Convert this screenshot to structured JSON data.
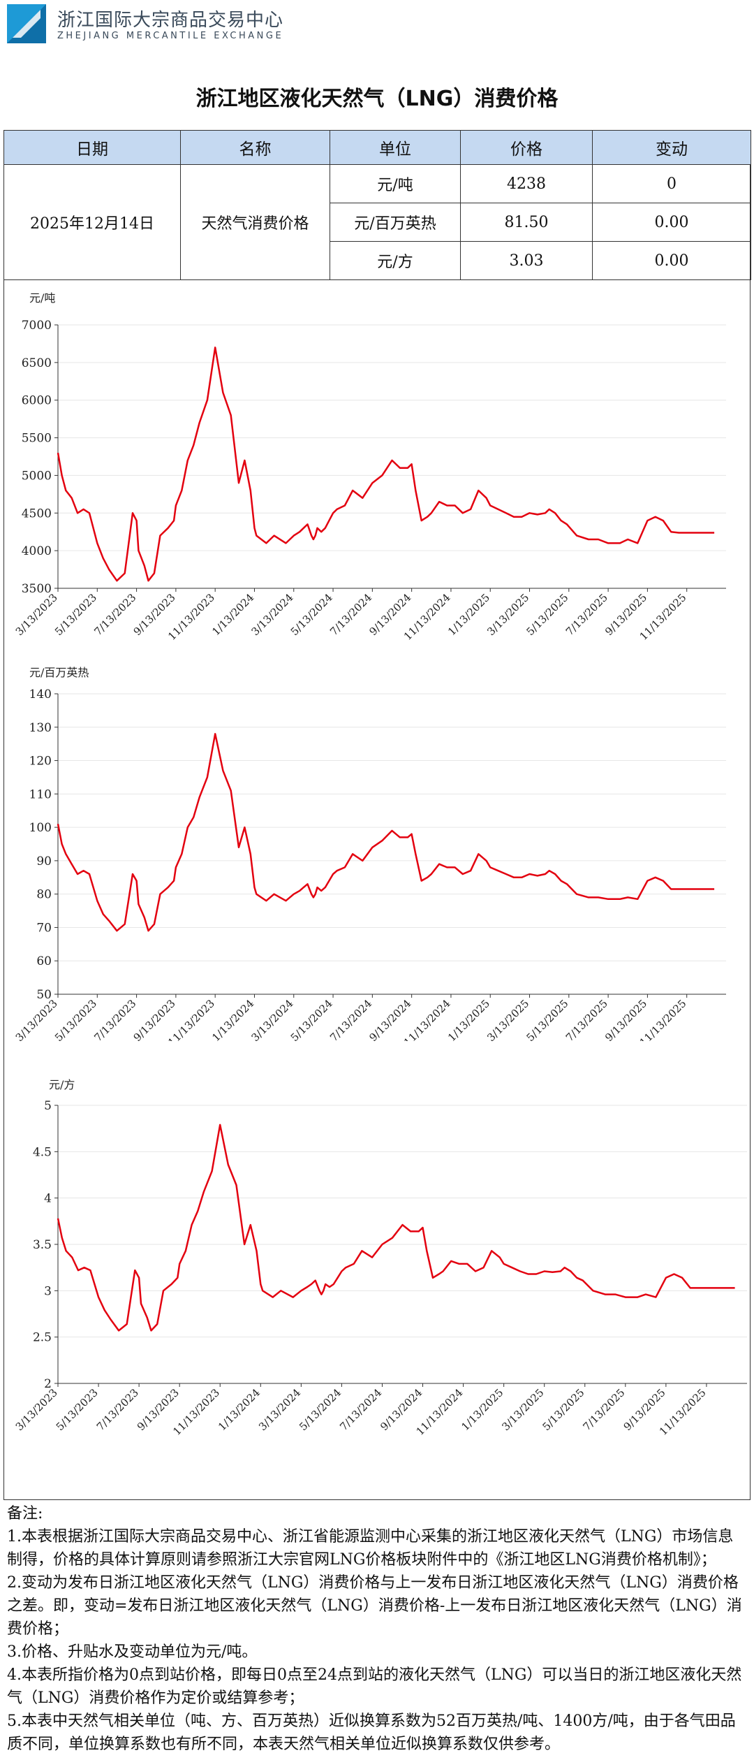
{
  "header": {
    "org_name_cn": "浙江国际大宗商品交易中心",
    "org_name_en": "ZHEJIANG MERCANTILE EXCHANGE",
    "logo_color": "#1e9ad6"
  },
  "title": "浙江地区液化天然气（LNG）消费价格",
  "table": {
    "headers": [
      "日期",
      "名称",
      "单位",
      "价格",
      "变动"
    ],
    "date": "2025年12月14日",
    "name": "天然气消费价格",
    "rows": [
      {
        "unit": "元/吨",
        "price": "4238",
        "change": "0"
      },
      {
        "unit": "元/百万英热",
        "price": "81.50",
        "change": "0.00"
      },
      {
        "unit": "元/方",
        "price": "3.03",
        "change": "0.00"
      }
    ]
  },
  "chart_data": [
    {
      "type": "line",
      "ylabel": "元/吨",
      "ylim": [
        3500,
        7000
      ],
      "yticks": [
        3500,
        4000,
        4500,
        5000,
        5500,
        6000,
        6500,
        7000
      ],
      "xticks": [
        "3/13/2023",
        "5/13/2023",
        "7/13/2023",
        "9/13/2023",
        "11/13/2023",
        "1/13/2024",
        "3/13/2024",
        "5/13/2024",
        "7/13/2024",
        "9/13/2024",
        "11/13/2024",
        "1/13/2025",
        "3/13/2025",
        "5/13/2025",
        "7/13/2025",
        "9/13/2025",
        "11/13/2025"
      ],
      "color": "#e3000f",
      "x_months": [
        0,
        0.2,
        0.4,
        0.7,
        1.0,
        1.3,
        1.6,
        2.0,
        2.3,
        2.6,
        3.0,
        3.4,
        3.8,
        4.0,
        4.1,
        4.4,
        4.6,
        4.9,
        5.2,
        5.6,
        5.9,
        6.0,
        6.3,
        6.6,
        6.9,
        7.2,
        7.6,
        8.0,
        8.4,
        8.8,
        9.2,
        9.5,
        9.8,
        10.0,
        10.1,
        10.6,
        11.0,
        11.6,
        12.0,
        12.3,
        12.5,
        12.7,
        12.9,
        13.0,
        13.1,
        13.2,
        13.4,
        13.6,
        13.8,
        14.0,
        14.2,
        14.6,
        15.0,
        15.5,
        16.0,
        16.5,
        17.0,
        17.4,
        17.8,
        18.0,
        18.2,
        18.5,
        18.8,
        19.0,
        19.4,
        19.8,
        20.2,
        20.6,
        21.0,
        21.4,
        21.8,
        22.0,
        22.4,
        22.8,
        23.2,
        23.6,
        24.0,
        24.4,
        24.8,
        25.0,
        25.3,
        25.6,
        25.9,
        26.4,
        27.0,
        27.5,
        28.0,
        28.6,
        29.0,
        29.5,
        30.0,
        30.4,
        30.8,
        31.2,
        31.6,
        32.0,
        32.5,
        33.0,
        33.4
      ],
      "values": [
        5300,
        5000,
        4800,
        4700,
        4500,
        4550,
        4500,
        4100,
        3900,
        3750,
        3600,
        3700,
        4500,
        4400,
        4000,
        3800,
        3600,
        3700,
        4200,
        4300,
        4400,
        4600,
        4800,
        5200,
        5400,
        5700,
        6000,
        6700,
        6100,
        5800,
        4900,
        5200,
        4800,
        4300,
        4200,
        4100,
        4200,
        4100,
        4200,
        4250,
        4300,
        4350,
        4200,
        4150,
        4200,
        4300,
        4250,
        4300,
        4400,
        4500,
        4550,
        4600,
        4800,
        4700,
        4900,
        5000,
        5200,
        5100,
        5100,
        5150,
        4800,
        4400,
        4450,
        4500,
        4650,
        4600,
        4600,
        4500,
        4550,
        4800,
        4700,
        4600,
        4550,
        4500,
        4450,
        4450,
        4500,
        4480,
        4500,
        4550,
        4500,
        4400,
        4350,
        4200,
        4150,
        4150,
        4100,
        4100,
        4150,
        4100,
        4400,
        4450,
        4400,
        4250,
        4238,
        4238,
        4238,
        4238,
        4238
      ]
    },
    {
      "type": "line",
      "ylabel": "元/百万英热",
      "ylim": [
        50,
        140
      ],
      "yticks": [
        50,
        60,
        70,
        80,
        90,
        100,
        110,
        120,
        130,
        140
      ],
      "xticks": [
        "3/13/2023",
        "5/13/2023",
        "7/13/2023",
        "9/13/2023",
        "11/13/2023",
        "1/13/2024",
        "3/13/2024",
        "5/13/2024",
        "7/13/2024",
        "9/13/2024",
        "11/13/2024",
        "1/13/2025",
        "3/13/2025",
        "5/13/2025",
        "7/13/2025",
        "9/13/2025",
        "11/13/2025"
      ],
      "color": "#e3000f",
      "x_months": [
        0,
        0.2,
        0.4,
        0.7,
        1.0,
        1.3,
        1.6,
        2.0,
        2.3,
        2.6,
        3.0,
        3.4,
        3.8,
        4.0,
        4.1,
        4.4,
        4.6,
        4.9,
        5.2,
        5.6,
        5.9,
        6.0,
        6.3,
        6.6,
        6.9,
        7.2,
        7.6,
        8.0,
        8.4,
        8.8,
        9.2,
        9.5,
        9.8,
        10.0,
        10.1,
        10.6,
        11.0,
        11.6,
        12.0,
        12.3,
        12.5,
        12.7,
        12.9,
        13.0,
        13.1,
        13.2,
        13.4,
        13.6,
        13.8,
        14.0,
        14.2,
        14.6,
        15.0,
        15.5,
        16.0,
        16.5,
        17.0,
        17.4,
        17.8,
        18.0,
        18.2,
        18.5,
        18.8,
        19.0,
        19.4,
        19.8,
        20.2,
        20.6,
        21.0,
        21.4,
        21.8,
        22.0,
        22.4,
        22.8,
        23.2,
        23.6,
        24.0,
        24.4,
        24.8,
        25.0,
        25.3,
        25.6,
        25.9,
        26.4,
        27.0,
        27.5,
        28.0,
        28.6,
        29.0,
        29.5,
        30.0,
        30.4,
        30.8,
        31.2,
        31.6,
        32.0,
        32.5,
        33.0,
        33.4
      ],
      "values": [
        101,
        95,
        92,
        89,
        86,
        87,
        86,
        78,
        74,
        72,
        69,
        71,
        86,
        84,
        77,
        73,
        69,
        71,
        80,
        82,
        84,
        88,
        92,
        100,
        103,
        109,
        115,
        128,
        117,
        111,
        94,
        100,
        92,
        82,
        80,
        78,
        80,
        78,
        80,
        81,
        82,
        83,
        80,
        79,
        80,
        82,
        81,
        82,
        84,
        86,
        87,
        88,
        92,
        90,
        94,
        96,
        99,
        97,
        97,
        98,
        92,
        84,
        85,
        86,
        89,
        88,
        88,
        86,
        87,
        92,
        90,
        88,
        87,
        86,
        85,
        85,
        86,
        85.5,
        86,
        87,
        86,
        84,
        83,
        80,
        79,
        79,
        78.5,
        78.5,
        79,
        78.5,
        84,
        85,
        84,
        81.5,
        81.5,
        81.5,
        81.5,
        81.5,
        81.5
      ]
    },
    {
      "type": "line",
      "ylabel": "元/方",
      "ylim": [
        2,
        5
      ],
      "yticks": [
        2,
        2.5,
        3,
        3.5,
        4,
        4.5,
        5
      ],
      "xticks": [
        "3/13/2023",
        "5/13/2023",
        "7/13/2023",
        "9/13/2023",
        "11/13/2023",
        "1/13/2024",
        "3/13/2024",
        "5/13/2024",
        "7/13/2024",
        "9/13/2024",
        "11/13/2024",
        "1/13/2025",
        "3/13/2025",
        "5/13/2025",
        "7/13/2025",
        "9/13/2025",
        "11/13/2025"
      ],
      "color": "#e3000f",
      "x_months": [
        0,
        0.2,
        0.4,
        0.7,
        1.0,
        1.3,
        1.6,
        2.0,
        2.3,
        2.6,
        3.0,
        3.4,
        3.8,
        4.0,
        4.1,
        4.4,
        4.6,
        4.9,
        5.2,
        5.6,
        5.9,
        6.0,
        6.3,
        6.6,
        6.9,
        7.2,
        7.6,
        8.0,
        8.4,
        8.8,
        9.2,
        9.5,
        9.8,
        10.0,
        10.1,
        10.6,
        11.0,
        11.6,
        12.0,
        12.3,
        12.5,
        12.7,
        12.9,
        13.0,
        13.1,
        13.2,
        13.4,
        13.6,
        13.8,
        14.0,
        14.2,
        14.6,
        15.0,
        15.5,
        16.0,
        16.5,
        17.0,
        17.4,
        17.8,
        18.0,
        18.2,
        18.5,
        18.8,
        19.0,
        19.4,
        19.8,
        20.2,
        20.6,
        21.0,
        21.4,
        21.8,
        22.0,
        22.4,
        22.8,
        23.2,
        23.6,
        24.0,
        24.4,
        24.8,
        25.0,
        25.3,
        25.6,
        25.9,
        26.4,
        27.0,
        27.5,
        28.0,
        28.6,
        29.0,
        29.5,
        30.0,
        30.4,
        30.8,
        31.2,
        31.6,
        32.0,
        32.5,
        33.0,
        33.4
      ],
      "values": [
        3.78,
        3.57,
        3.43,
        3.36,
        3.22,
        3.25,
        3.22,
        2.93,
        2.79,
        2.69,
        2.57,
        2.64,
        3.22,
        3.14,
        2.86,
        2.71,
        2.57,
        2.64,
        3.0,
        3.07,
        3.14,
        3.29,
        3.43,
        3.71,
        3.86,
        4.07,
        4.29,
        4.79,
        4.36,
        4.14,
        3.5,
        3.71,
        3.43,
        3.07,
        3.0,
        2.93,
        3.0,
        2.93,
        3.0,
        3.04,
        3.07,
        3.11,
        3.0,
        2.96,
        3.0,
        3.07,
        3.04,
        3.07,
        3.14,
        3.21,
        3.25,
        3.29,
        3.43,
        3.36,
        3.5,
        3.57,
        3.71,
        3.64,
        3.64,
        3.68,
        3.43,
        3.14,
        3.18,
        3.21,
        3.32,
        3.29,
        3.29,
        3.21,
        3.25,
        3.43,
        3.36,
        3.29,
        3.25,
        3.21,
        3.18,
        3.18,
        3.21,
        3.2,
        3.21,
        3.25,
        3.21,
        3.14,
        3.11,
        3.0,
        2.96,
        2.96,
        2.93,
        2.93,
        2.96,
        2.93,
        3.14,
        3.18,
        3.14,
        3.03,
        3.03,
        3.03,
        3.03,
        3.03,
        3.03
      ]
    }
  ],
  "notes": {
    "heading": "备注:",
    "items": [
      "1.本表根据浙江国际大宗商品交易中心、浙江省能源监测中心采集的浙江地区液化天然气（LNG）市场信息制得，价格的具体计算原则请参照浙江大宗官网LNG价格板块附件中的《浙江地区LNG消费价格机制》；",
      "2.变动为发布日浙江地区液化天然气（LNG）消费价格与上一发布日浙江地区液化天然气（LNG）消费价格之差。即，变动=发布日浙江地区液化天然气（LNG）消费价格-上一发布日浙江地区液化天然气（LNG）消费价格；",
      "3.价格、升贴水及变动单位为元/吨。",
      "4.本表所指价格为0点到站价格，即每日0点至24点到站的液化天然气（LNG）可以当日的浙江地区液化天然气（LNG）消费价格作为定价或结算参考；",
      "5.本表中天然气相关单位（吨、方、百万英热）近似换算系数为52百万英热/吨、1400方/吨，由于各气田品质不同，单位换算系数也有所不同，本表天然气相关单位近似换算系数仅供参考。"
    ]
  }
}
